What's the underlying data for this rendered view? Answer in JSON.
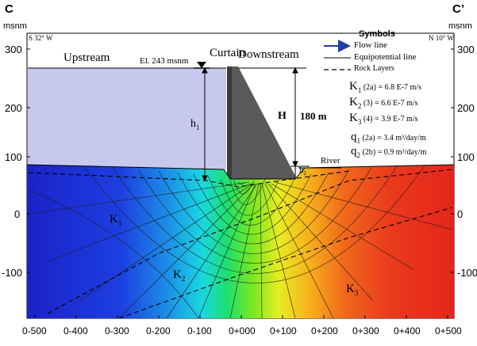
{
  "labels": {
    "section_left": "C",
    "section_right": "C’",
    "units_left": "msnm",
    "units_right": "msnm",
    "orientation_left": "S 32° W",
    "orientation_right": "N 10° W",
    "upstream": "Upstream",
    "downstream": "Downstream",
    "curtain": "Curtain",
    "elevation": "El. 243 msnm",
    "river": "River",
    "h1": "h",
    "h1_sub": "1",
    "h2": "h",
    "h2_sub": "2",
    "H": "H",
    "height_180": "180 m",
    "k1": "K",
    "k1_sub": "1",
    "k2": "K",
    "k2_sub": "2",
    "k3": "K",
    "k3_sub": "3"
  },
  "legend": {
    "title": "Symbols",
    "flow_line": "Flow line",
    "equipotential": "Equipotential line",
    "rock_layers": "Rock Layers",
    "k1_line": {
      "sym": "K",
      "sub": "1",
      "rest": " (2a) =  6.8  E-7 m/s"
    },
    "k2_line": {
      "sym": "K",
      "sub": "2",
      "rest": " (3) =  6.6  E-7 m/s"
    },
    "k3_line": {
      "sym": "K",
      "sub": "3",
      "rest": " (4) =  3.9  E-7 m/s"
    },
    "q1_line": {
      "sym": "q",
      "sub": "1",
      "rest": " (2a) = 3.4  m³/day/m"
    },
    "q2_line": {
      "sym": "q",
      "sub": "2",
      "rest": " (2b) = 0.9 m³/day/m"
    }
  },
  "axes": {
    "y_ticks": [
      "300",
      "200",
      "100",
      "0",
      "-100"
    ],
    "x_ticks": [
      "0-500",
      "0-400",
      "0-300",
      "0-200",
      "0-100",
      "0+000",
      "0+100",
      "0+200",
      "0+300",
      "0+400",
      "0+500"
    ]
  },
  "colors": {
    "reservoir": "#c6c8ee",
    "dam": "#5a5a5a",
    "flow_arrow": "#1f3fa0"
  }
}
